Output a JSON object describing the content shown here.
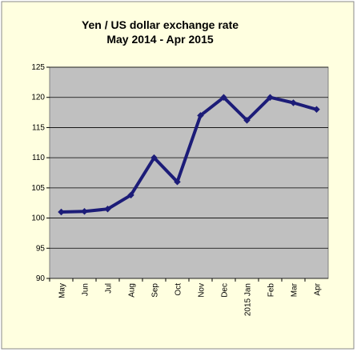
{
  "chart_data": {
    "type": "line",
    "title": "Yen / US dollar exchange rate",
    "subtitle": "May 2014 - Apr 2015",
    "categories": [
      "May",
      "Jun",
      "Jul",
      "Aug",
      "Sep",
      "Oct",
      "Nov",
      "Dec",
      "2015 Jan",
      "Feb",
      "Mar",
      "Apr"
    ],
    "series": [
      {
        "color": "#1c1c78",
        "values": [
          101,
          101.1,
          101.5,
          103.8,
          110,
          106,
          117,
          120,
          116.2,
          120,
          119.1,
          118
        ]
      }
    ],
    "ylim": [
      90,
      125
    ],
    "yticks": [
      90,
      95,
      100,
      105,
      110,
      115,
      120,
      125
    ],
    "grid": true
  }
}
